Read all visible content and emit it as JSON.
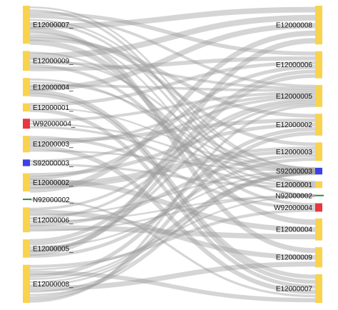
{
  "colors": {
    "E": "#f9d34e",
    "W": "#e8373f",
    "S": "#3b41e3",
    "N": "#2e8b3d",
    "link": "#9a9a9a"
  },
  "left_nodes": [
    {
      "id": "L-E12000007",
      "label": "E12000007_",
      "type": "E",
      "value": 46
    },
    {
      "id": "L-E12000009",
      "label": "E12000009_",
      "type": "E",
      "value": 24
    },
    {
      "id": "L-E12000004",
      "label": "E12000004_",
      "type": "E",
      "value": 22
    },
    {
      "id": "L-E12000001",
      "label": "E12000001_",
      "type": "E",
      "value": 10
    },
    {
      "id": "L-W92000004",
      "label": "W92000004_",
      "type": "W",
      "value": 12
    },
    {
      "id": "L-E12000003",
      "label": "E12000003_",
      "type": "E",
      "value": 20
    },
    {
      "id": "L-S92000003",
      "label": "S92000003_",
      "type": "S",
      "value": 8
    },
    {
      "id": "L-E12000002",
      "label": "E12000002_",
      "type": "E",
      "value": 22
    },
    {
      "id": "L-N92000002",
      "label": "N92000002_",
      "type": "N",
      "value": 2
    },
    {
      "id": "L-E12000006",
      "label": "E12000006_",
      "type": "E",
      "value": 30
    },
    {
      "id": "L-E12000005",
      "label": "E12000005_",
      "type": "E",
      "value": 22
    },
    {
      "id": "L-E12000008",
      "label": "E12000008_",
      "type": "E",
      "value": 46
    }
  ],
  "right_nodes": [
    {
      "id": "R-E12000008",
      "label": "E12000008",
      "type": "E",
      "value": 46
    },
    {
      "id": "R-E12000006",
      "label": "E12000006",
      "type": "E",
      "value": 32
    },
    {
      "id": "R-E12000005",
      "label": "E12000005",
      "type": "E",
      "value": 26
    },
    {
      "id": "R-E12000002",
      "label": "E12000002",
      "type": "E",
      "value": 26
    },
    {
      "id": "R-E12000003",
      "label": "E12000003",
      "type": "E",
      "value": 22
    },
    {
      "id": "R-S92000003",
      "label": "S92000003",
      "type": "S",
      "value": 8
    },
    {
      "id": "R-E12000001",
      "label": "E12000001",
      "type": "E",
      "value": 8
    },
    {
      "id": "R-N92000002",
      "label": "N92000002",
      "type": "N",
      "value": 2
    },
    {
      "id": "R-W92000004",
      "label": "W92000004",
      "type": "W",
      "value": 10
    },
    {
      "id": "R-E12000004",
      "label": "E12000004",
      "type": "E",
      "value": 26
    },
    {
      "id": "R-E12000009",
      "label": "E12000009",
      "type": "E",
      "value": 24
    },
    {
      "id": "R-E12000007",
      "label": "E12000007",
      "type": "E",
      "value": 34
    }
  ]
}
